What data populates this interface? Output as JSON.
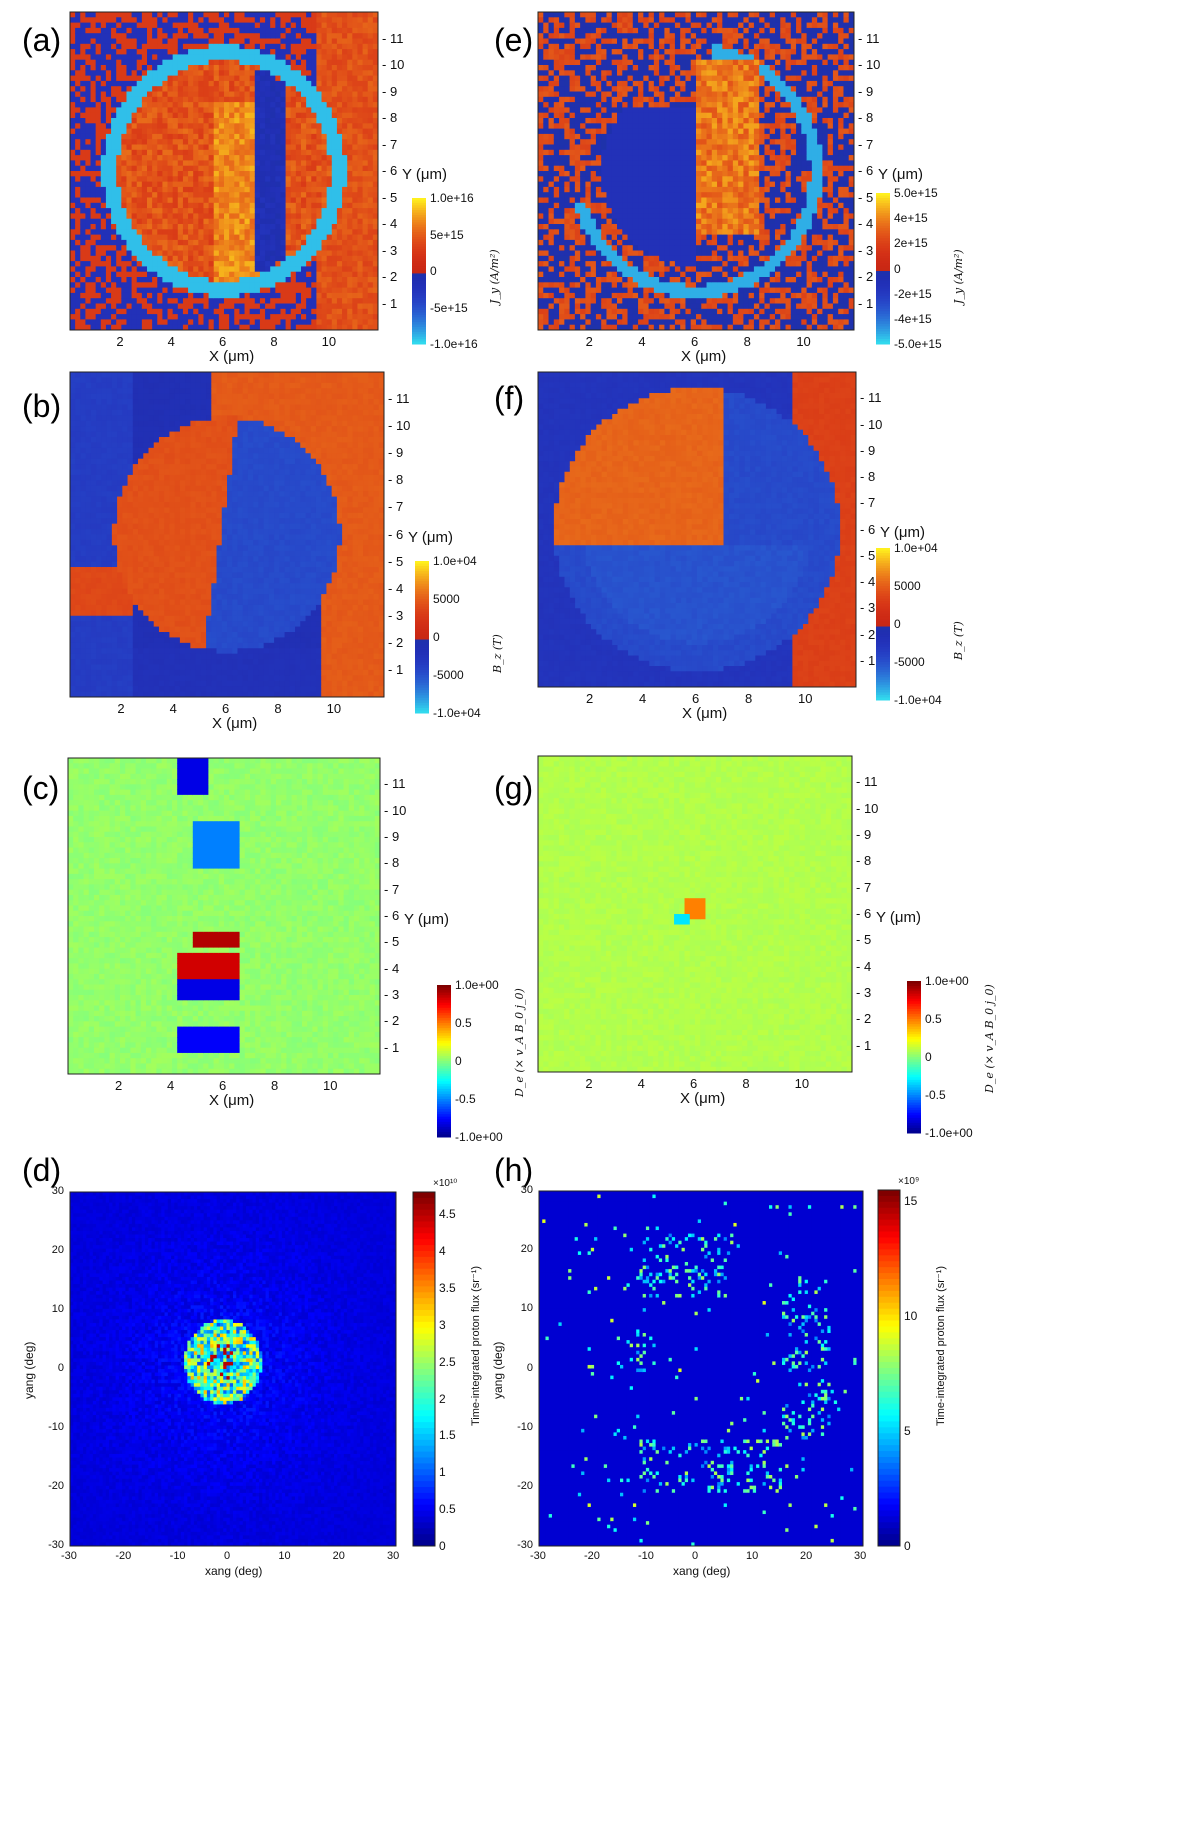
{
  "panels": {
    "a": {
      "letter": "(a)",
      "xlabel": "X (μm)",
      "ylabel": "Y (μm)",
      "cb_label": "J_y (A/m²)",
      "xticks": [
        "2",
        "4",
        "6",
        "8",
        "10"
      ],
      "yticks": [
        "1",
        "2",
        "3",
        "4",
        "5",
        "6",
        "7",
        "8",
        "9",
        "10",
        "11"
      ],
      "cb_ticks": [
        "1.0e+16",
        "5e+15",
        "0",
        "-5e+15",
        "-1.0e+16"
      ]
    },
    "e": {
      "letter": "(e)",
      "xlabel": "X (μm)",
      "ylabel": "Y (μm)",
      "cb_label": "J_y (A/m²)",
      "xticks": [
        "2",
        "4",
        "6",
        "8",
        "10"
      ],
      "yticks": [
        "1",
        "2",
        "3",
        "4",
        "5",
        "6",
        "7",
        "8",
        "9",
        "10",
        "11"
      ],
      "cb_ticks": [
        "5.0e+15",
        "4e+15",
        "2e+15",
        "0",
        "-2e+15",
        "-4e+15",
        "-5.0e+15"
      ]
    },
    "b": {
      "letter": "(b)",
      "xlabel": "X (μm)",
      "ylabel": "Y (μm)",
      "cb_label": "B_z (T)",
      "xticks": [
        "2",
        "4",
        "6",
        "8",
        "10"
      ],
      "yticks": [
        "1",
        "2",
        "3",
        "4",
        "5",
        "6",
        "7",
        "8",
        "9",
        "10",
        "11"
      ],
      "cb_ticks": [
        "1.0e+04",
        "5000",
        "0",
        "-5000",
        "-1.0e+04"
      ]
    },
    "f": {
      "letter": "(f)",
      "xlabel": "X (μm)",
      "ylabel": "Y (μm)",
      "cb_label": "B_z (T)",
      "xticks": [
        "2",
        "4",
        "6",
        "8",
        "10"
      ],
      "yticks": [
        "1",
        "2",
        "3",
        "4",
        "5",
        "6",
        "7",
        "8",
        "9",
        "10",
        "11"
      ],
      "cb_ticks": [
        "1.0e+04",
        "5000",
        "0",
        "-5000",
        "-1.0e+04"
      ]
    },
    "c": {
      "letter": "(c)",
      "xlabel": "X (μm)",
      "ylabel": "Y (μm)",
      "cb_label": "D_e (× v_A B_0 j_0)",
      "xticks": [
        "2",
        "4",
        "6",
        "8",
        "10"
      ],
      "yticks": [
        "1",
        "2",
        "3",
        "4",
        "5",
        "6",
        "7",
        "8",
        "9",
        "10",
        "11"
      ],
      "cb_ticks": [
        "1.0e+00",
        "0.5",
        "0",
        "-0.5",
        "-1.0e+00"
      ]
    },
    "g": {
      "letter": "(g)",
      "xlabel": "X (μm)",
      "ylabel": "Y (μm)",
      "cb_label": "D_e (× v_A B_0 j_0)",
      "xticks": [
        "2",
        "4",
        "6",
        "8",
        "10"
      ],
      "yticks": [
        "1",
        "2",
        "3",
        "4",
        "5",
        "6",
        "7",
        "8",
        "9",
        "10",
        "11"
      ],
      "cb_ticks": [
        "1.0e+00",
        "0.5",
        "0",
        "-0.5",
        "-1.0e+00"
      ]
    },
    "d": {
      "letter": "(d)",
      "xlabel": "xang (deg)",
      "ylabel": "yang (deg)",
      "cb_label": "Time-integrated proton flux (sr⁻¹)",
      "cb_exponent": "×10¹⁰",
      "xticks": [
        "-30",
        "-20",
        "-10",
        "0",
        "10",
        "20",
        "30"
      ],
      "yticks": [
        "30",
        "20",
        "10",
        "0",
        "-10",
        "-20",
        "-30"
      ],
      "cb_ticks": [
        "4.5",
        "4",
        "3.5",
        "3",
        "2.5",
        "2",
        "1.5",
        "1",
        "0.5",
        "0"
      ]
    },
    "h": {
      "letter": "(h)",
      "xlabel": "xang (deg)",
      "ylabel": "yang (deg)",
      "cb_label": "Time-integrated proton flux (sr⁻¹)",
      "cb_exponent": "×10⁹",
      "xticks": [
        "-30",
        "-20",
        "-10",
        "0",
        "10",
        "20",
        "30"
      ],
      "yticks": [
        "30",
        "20",
        "10",
        "0",
        "-10",
        "-20",
        "-30"
      ],
      "cb_ticks": [
        "15",
        "10",
        "5",
        "0"
      ]
    }
  },
  "chart_data": [
    {
      "panel": "a",
      "type": "heatmap",
      "quantity": "J_y",
      "unit": "A/m²",
      "xlim": [
        0,
        12
      ],
      "ylim": [
        0,
        12
      ],
      "clim": [
        -1e+16,
        1e+16
      ]
    },
    {
      "panel": "e",
      "type": "heatmap",
      "quantity": "J_y",
      "unit": "A/m²",
      "xlim": [
        0,
        12
      ],
      "ylim": [
        0,
        12
      ],
      "clim": [
        -5000000000000000.0,
        5000000000000000.0
      ]
    },
    {
      "panel": "b",
      "type": "heatmap",
      "quantity": "B_z",
      "unit": "T",
      "xlim": [
        0,
        12
      ],
      "ylim": [
        0,
        12
      ],
      "clim": [
        -10000.0,
        10000.0
      ]
    },
    {
      "panel": "f",
      "type": "heatmap",
      "quantity": "B_z",
      "unit": "T",
      "xlim": [
        0,
        12
      ],
      "ylim": [
        0,
        12
      ],
      "clim": [
        -10000.0,
        10000.0
      ]
    },
    {
      "panel": "c",
      "type": "heatmap",
      "quantity": "D_e",
      "xlim": [
        0,
        12
      ],
      "ylim": [
        0,
        12
      ],
      "clim": [
        -1.0,
        1.0
      ]
    },
    {
      "panel": "g",
      "type": "heatmap",
      "quantity": "D_e",
      "xlim": [
        0,
        12
      ],
      "ylim": [
        0,
        12
      ],
      "clim": [
        -1.0,
        1.0
      ]
    },
    {
      "panel": "d",
      "type": "heatmap",
      "quantity": "proton flux",
      "xlim": [
        -30,
        30
      ],
      "ylim": [
        -30,
        30
      ],
      "clim": [
        0,
        48000000000.0
      ]
    },
    {
      "panel": "h",
      "type": "heatmap",
      "quantity": "proton flux",
      "xlim": [
        -30,
        30
      ],
      "ylim": [
        -30,
        30
      ],
      "clim": [
        0,
        15500000000.0
      ]
    }
  ],
  "colors": {
    "jet_dark_blue": "#1d3cae",
    "red": "#e03a10",
    "cyan": "#33e0ee",
    "yellow": "#f7e01c",
    "green": "#22c43a",
    "matlab_dark_blue": "#07068f"
  }
}
